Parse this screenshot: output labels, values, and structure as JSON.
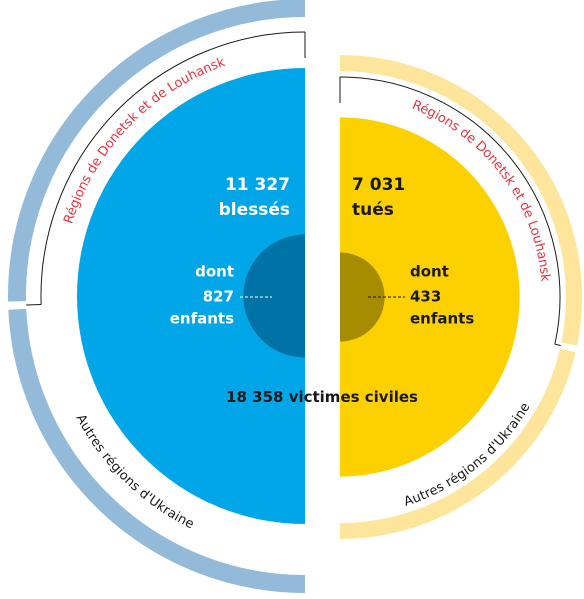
{
  "chart_data": {
    "type": "split-semicircle",
    "total_value": 18358,
    "total_label": "18 358",
    "total_text": "victimes civiles",
    "halves": [
      {
        "value": 11327,
        "label": "11 327",
        "name": "blessés",
        "color": "#00a6e8",
        "text_color": "#ffffff",
        "children_prefix": "dont",
        "children_value": 827,
        "children_name": "enfants",
        "inner_color": "#0073a6",
        "ring_color": "#93bbd9",
        "regions": [
          {
            "name": "Régions de Donetsk et de Louhansk",
            "value": 5780,
            "color": "#e8343f"
          },
          {
            "name": "Autres régions d'Ukraine",
            "value": 5547,
            "color": "#1a1a1a"
          }
        ]
      },
      {
        "value": 7031,
        "label": "7 031",
        "name": "tués",
        "color": "#fdd000",
        "text_color": "#1a1a1a",
        "children_prefix": "dont",
        "children_value": 433,
        "children_name": "enfants",
        "inner_color": "#a68c00",
        "ring_color": "#fde59c",
        "regions": [
          {
            "name": "Régions de Donetsk et de Louhansk",
            "value": 4000,
            "color": "#e8343f"
          },
          {
            "name": "Autres régions d'Ukraine",
            "value": 3031,
            "color": "#1a1a1a"
          }
        ]
      }
    ]
  }
}
